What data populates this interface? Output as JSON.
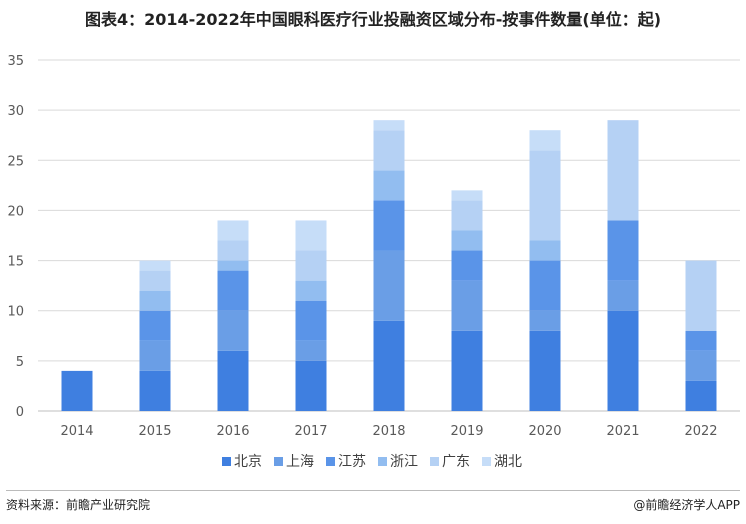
{
  "chart_data": {
    "type": "bar",
    "stacked": true,
    "title": "图表4：2014-2022年中国眼科医疗行业投融资区域分布-按事件数量(单位：起)",
    "categories": [
      "2014",
      "2015",
      "2016",
      "2017",
      "2018",
      "2019",
      "2020",
      "2021",
      "2022"
    ],
    "series": [
      {
        "name": "北京",
        "color": "#3f7fe0",
        "values": [
          4,
          4,
          6,
          5,
          9,
          8,
          8,
          10,
          3
        ]
      },
      {
        "name": "上海",
        "color": "#6a9ee6",
        "values": [
          0,
          3,
          4,
          2,
          7,
          5,
          2,
          3,
          3
        ]
      },
      {
        "name": "江苏",
        "color": "#5a94e8",
        "values": [
          0,
          3,
          4,
          4,
          5,
          3,
          5,
          6,
          2
        ]
      },
      {
        "name": "浙江",
        "color": "#92bdf0",
        "values": [
          0,
          2,
          1,
          2,
          3,
          2,
          2,
          0,
          0
        ]
      },
      {
        "name": "广东",
        "color": "#b5d1f4",
        "values": [
          0,
          2,
          2,
          3,
          4,
          3,
          9,
          10,
          7
        ]
      },
      {
        "name": "湖北",
        "color": "#c6ddf8",
        "values": [
          0,
          1,
          2,
          3,
          1,
          1,
          2,
          0,
          0
        ]
      }
    ],
    "ylim": [
      0,
      35
    ],
    "yticks": [
      0,
      5,
      10,
      15,
      20,
      25,
      30,
      35
    ],
    "grid": true,
    "legend": "bottom"
  },
  "footer": {
    "source": "资料来源：前瞻产业研究院",
    "brand": "@前瞻经济学人APP"
  }
}
